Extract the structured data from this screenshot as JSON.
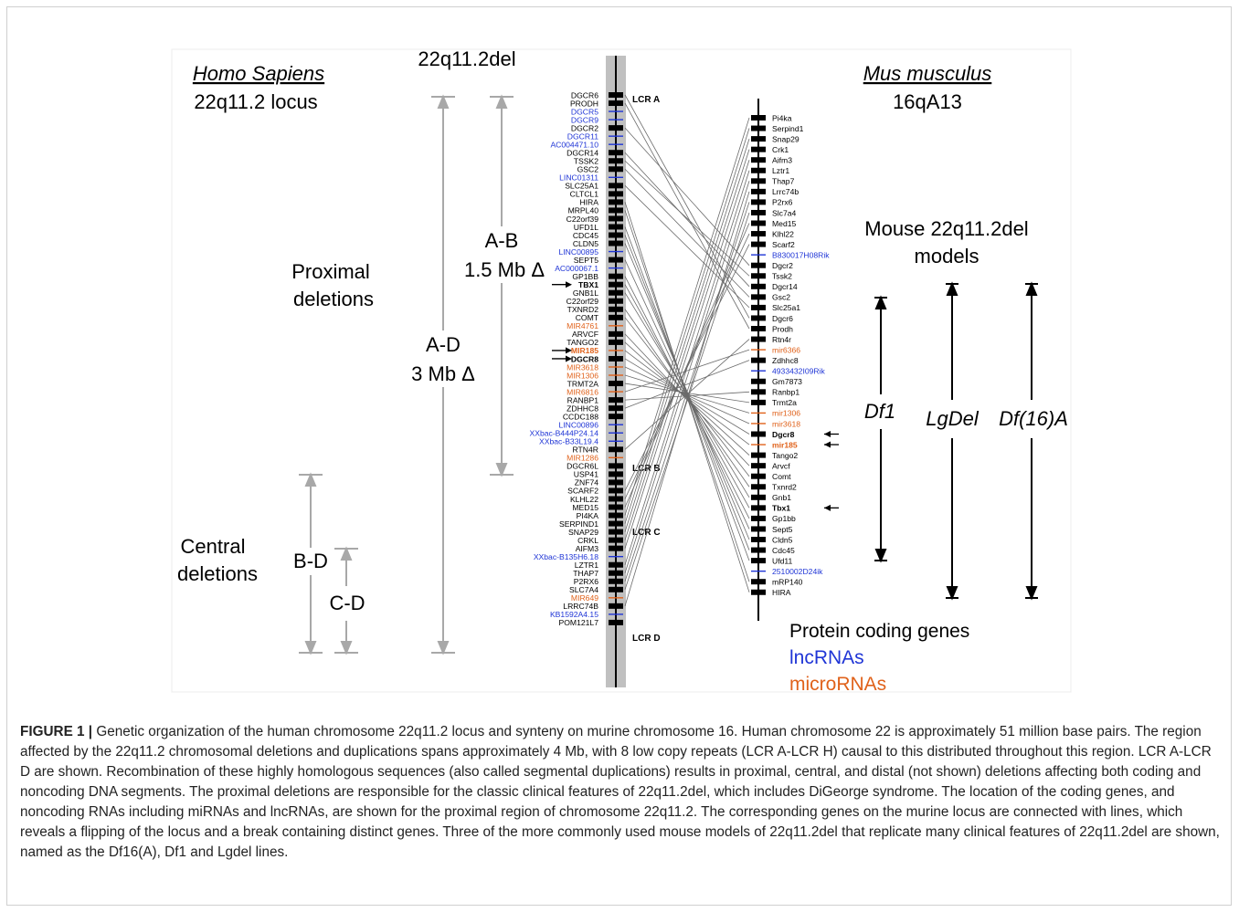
{
  "figure": {
    "titles": {
      "human_species": "Homo Sapiens",
      "human_locus": "22q11.2 locus",
      "deletion_label": "22q11.2del",
      "mouse_species": "Mus musculus",
      "mouse_locus": "16qA13",
      "mouse_models_line1": "Mouse 22q11.2del",
      "mouse_models_line2": "models"
    },
    "deletion_groups": {
      "proximal_line1": "Proximal",
      "proximal_line2": "deletions",
      "central_line1": "Central",
      "central_line2": "deletions"
    },
    "ranges": {
      "ad_label": "A-D",
      "ad_size": "3 Mb Δ",
      "ab_label": "A-B",
      "ab_size": "1.5 Mb Δ",
      "bd_label": "B-D",
      "cd_label": "C-D"
    },
    "models": [
      "Df1",
      "LgDel",
      "Df(16)A"
    ],
    "legend": {
      "protein": "Protein coding genes",
      "lnc": "lncRNAs",
      "micro": "microRNAs"
    },
    "lcr_labels": [
      "LCR A",
      "LCR B",
      "LCR C",
      "LCR D"
    ],
    "colors": {
      "protein": "#000000",
      "lnc": "#1f35d6",
      "micro": "#e0621b",
      "bracket": "#a8a8a8",
      "lcr_band": "#c0c0c0"
    },
    "human_genes": [
      {
        "name": "DGCR6",
        "type": "p"
      },
      {
        "name": "PRODH",
        "type": "p"
      },
      {
        "name": "DGCR5",
        "type": "l"
      },
      {
        "name": "DGCR9",
        "type": "l"
      },
      {
        "name": "DGCR2",
        "type": "p"
      },
      {
        "name": "DGCR11",
        "type": "l"
      },
      {
        "name": "AC004471.10",
        "type": "l"
      },
      {
        "name": "DGCR14",
        "type": "p"
      },
      {
        "name": "TSSK2",
        "type": "p"
      },
      {
        "name": "GSC2",
        "type": "p"
      },
      {
        "name": "LINC01311",
        "type": "l"
      },
      {
        "name": "SLC25A1",
        "type": "p"
      },
      {
        "name": "CLTCL1",
        "type": "p"
      },
      {
        "name": "HIRA",
        "type": "p"
      },
      {
        "name": "MRPL40",
        "type": "p"
      },
      {
        "name": "C22orf39",
        "type": "p"
      },
      {
        "name": "UFD1L",
        "type": "p"
      },
      {
        "name": "CDC45",
        "type": "p"
      },
      {
        "name": "CLDN5",
        "type": "p"
      },
      {
        "name": "LINC00895",
        "type": "l"
      },
      {
        "name": "SEPT5",
        "type": "p"
      },
      {
        "name": "AC000067.1",
        "type": "l"
      },
      {
        "name": "GP1BB",
        "type": "p"
      },
      {
        "name": "TBX1",
        "type": "p",
        "bold": true,
        "arrow": true
      },
      {
        "name": "GNB1L",
        "type": "p"
      },
      {
        "name": "C22orf29",
        "type": "p"
      },
      {
        "name": "TXNRD2",
        "type": "p"
      },
      {
        "name": "COMT",
        "type": "p"
      },
      {
        "name": "MIR4761",
        "type": "m"
      },
      {
        "name": "ARVCF",
        "type": "p"
      },
      {
        "name": "TANGO2",
        "type": "p"
      },
      {
        "name": "MIR185",
        "type": "m",
        "bold": true,
        "arrow": true
      },
      {
        "name": "DGCR8",
        "type": "p",
        "bold": true,
        "arrow": true
      },
      {
        "name": "MIR3618",
        "type": "m"
      },
      {
        "name": "MIR1306",
        "type": "m"
      },
      {
        "name": "TRMT2A",
        "type": "p"
      },
      {
        "name": "MIR6816",
        "type": "m"
      },
      {
        "name": "RANBP1",
        "type": "p"
      },
      {
        "name": "ZDHHC8",
        "type": "p"
      },
      {
        "name": "CCDC188",
        "type": "p"
      },
      {
        "name": "LINC00896",
        "type": "l"
      },
      {
        "name": "XXbac-B444P24.14",
        "type": "l"
      },
      {
        "name": "XXbac-B33L19.4",
        "type": "l"
      },
      {
        "name": "RTN4R",
        "type": "p"
      },
      {
        "name": "MIR1286",
        "type": "m"
      },
      {
        "name": "DGCR6L",
        "type": "p"
      },
      {
        "name": "USP41",
        "type": "p"
      },
      {
        "name": "ZNF74",
        "type": "p"
      },
      {
        "name": "SCARF2",
        "type": "p"
      },
      {
        "name": "KLHL22",
        "type": "p"
      },
      {
        "name": "MED15",
        "type": "p"
      },
      {
        "name": "PI4KA",
        "type": "p"
      },
      {
        "name": "SERPIND1",
        "type": "p"
      },
      {
        "name": "SNAP29",
        "type": "p"
      },
      {
        "name": "CRKL",
        "type": "p"
      },
      {
        "name": "AIFM3",
        "type": "p"
      },
      {
        "name": "XXbac-B135H6.18",
        "type": "l"
      },
      {
        "name": "LZTR1",
        "type": "p"
      },
      {
        "name": "THAP7",
        "type": "p"
      },
      {
        "name": "P2RX6",
        "type": "p"
      },
      {
        "name": "SLC7A4",
        "type": "p"
      },
      {
        "name": "MIR649",
        "type": "m"
      },
      {
        "name": "LRRC74B",
        "type": "p"
      },
      {
        "name": "KB1592A4.15",
        "type": "l"
      },
      {
        "name": "POM121L7",
        "type": "p"
      }
    ],
    "mouse_genes": [
      {
        "name": "Pi4ka",
        "type": "p"
      },
      {
        "name": "Serpind1",
        "type": "p"
      },
      {
        "name": "Snap29",
        "type": "p"
      },
      {
        "name": "Crk1",
        "type": "p"
      },
      {
        "name": "Aifm3",
        "type": "p"
      },
      {
        "name": "Lztr1",
        "type": "p"
      },
      {
        "name": "Thap7",
        "type": "p"
      },
      {
        "name": "Lrrc74b",
        "type": "p"
      },
      {
        "name": "P2rx6",
        "type": "p"
      },
      {
        "name": "Slc7a4",
        "type": "p"
      },
      {
        "name": "Med15",
        "type": "p"
      },
      {
        "name": "Klhl22",
        "type": "p"
      },
      {
        "name": "Scarf2",
        "type": "p"
      },
      {
        "name": "B830017H08Rik",
        "type": "l"
      },
      {
        "name": "Dgcr2",
        "type": "p"
      },
      {
        "name": "Tssk2",
        "type": "p"
      },
      {
        "name": "Dgcr14",
        "type": "p"
      },
      {
        "name": "Gsc2",
        "type": "p"
      },
      {
        "name": "Slc25a1",
        "type": "p"
      },
      {
        "name": "Dgcr6",
        "type": "p"
      },
      {
        "name": "Prodh",
        "type": "p"
      },
      {
        "name": "Rtn4r",
        "type": "p"
      },
      {
        "name": "mir6366",
        "type": "m"
      },
      {
        "name": "Zdhhc8",
        "type": "p"
      },
      {
        "name": "4933432I09Rik",
        "type": "l"
      },
      {
        "name": "Gm7873",
        "type": "p"
      },
      {
        "name": "Ranbp1",
        "type": "p"
      },
      {
        "name": "Trmt2a",
        "type": "p"
      },
      {
        "name": "mir1306",
        "type": "m"
      },
      {
        "name": "mir3618",
        "type": "m"
      },
      {
        "name": "Dgcr8",
        "type": "p",
        "bold": true,
        "arrow": true
      },
      {
        "name": "mir185",
        "type": "m",
        "bold": true,
        "arrow": true
      },
      {
        "name": "Tango2",
        "type": "p"
      },
      {
        "name": "Arvcf",
        "type": "p"
      },
      {
        "name": "Comt",
        "type": "p"
      },
      {
        "name": "Txnrd2",
        "type": "p"
      },
      {
        "name": "Gnb1",
        "type": "p"
      },
      {
        "name": "Tbx1",
        "type": "p",
        "bold": true,
        "arrow": true
      },
      {
        "name": "Gp1bb",
        "type": "p"
      },
      {
        "name": "Sept5",
        "type": "p"
      },
      {
        "name": "Cldn5",
        "type": "p"
      },
      {
        "name": "Cdc45",
        "type": "p"
      },
      {
        "name": "Ufd11",
        "type": "p"
      },
      {
        "name": "2510002D24ik",
        "type": "l"
      },
      {
        "name": "mRP140",
        "type": "p"
      },
      {
        "name": "HIRA",
        "type": "p"
      }
    ],
    "links": [
      [
        "DGCR6",
        "Dgcr6"
      ],
      [
        "PRODH",
        "Prodh"
      ],
      [
        "DGCR2",
        "Dgcr2"
      ],
      [
        "DGCR14",
        "Dgcr14"
      ],
      [
        "TSSK2",
        "Tssk2"
      ],
      [
        "GSC2",
        "Gsc2"
      ],
      [
        "SLC25A1",
        "Slc25a1"
      ],
      [
        "HIRA",
        "HIRA"
      ],
      [
        "MRPL40",
        "mRP140"
      ],
      [
        "UFD1L",
        "Ufd11"
      ],
      [
        "CDC45",
        "Cdc45"
      ],
      [
        "CLDN5",
        "Cldn5"
      ],
      [
        "SEPT5",
        "Sept5"
      ],
      [
        "GP1BB",
        "Gp1bb"
      ],
      [
        "TBX1",
        "Tbx1"
      ],
      [
        "GNB1L",
        "Gnb1"
      ],
      [
        "TXNRD2",
        "Txnrd2"
      ],
      [
        "COMT",
        "Comt"
      ],
      [
        "ARVCF",
        "Arvcf"
      ],
      [
        "TANGO2",
        "Tango2"
      ],
      [
        "MIR185",
        "mir185"
      ],
      [
        "DGCR8",
        "Dgcr8"
      ],
      [
        "MIR3618",
        "mir3618"
      ],
      [
        "MIR1306",
        "mir1306"
      ],
      [
        "TRMT2A",
        "Trmt2a"
      ],
      [
        "RANBP1",
        "Ranbp1"
      ],
      [
        "ZDHHC8",
        "Zdhhc8"
      ],
      [
        "RTN4R",
        "Rtn4r"
      ],
      [
        "MED15",
        "Med15"
      ],
      [
        "KLHL22",
        "Klhl22"
      ],
      [
        "SCARF2",
        "Scarf2"
      ],
      [
        "PI4KA",
        "Pi4ka"
      ],
      [
        "SERPIND1",
        "Serpind1"
      ],
      [
        "SNAP29",
        "Snap29"
      ],
      [
        "CRKL",
        "Crk1"
      ],
      [
        "AIFM3",
        "Aifm3"
      ],
      [
        "LZTR1",
        "Lztr1"
      ],
      [
        "THAP7",
        "Thap7"
      ],
      [
        "P2RX6",
        "P2rx6"
      ],
      [
        "SLC7A4",
        "Slc7a4"
      ],
      [
        "LRRC74B",
        "Lrrc74b"
      ],
      [
        "MIR6816",
        "mir6366"
      ]
    ]
  },
  "caption": {
    "label": "FIGURE 1 |",
    "text": " Genetic organization of the human chromosome 22q11.2 locus and synteny on murine chromosome 16. Human chromosome 22 is approximately 51 million base pairs. The region affected by the 22q11.2 chromosomal deletions and duplications spans approximately 4 Mb, with 8 low copy repeats (LCR A-LCR H) causal to this distributed throughout this region. LCR A-LCR D are shown. Recombination of these highly homologous sequences (also called segmental duplications) results in proximal, central, and distal (not shown) deletions affecting both coding and noncoding DNA segments. The proximal deletions are responsible for the classic clinical features of 22q11.2del, which includes DiGeorge syndrome. The location of the coding genes, and noncoding RNAs including miRNAs and lncRNAs, are shown for the proximal region of chromosome 22q11.2. The corresponding genes on the murine locus are connected with lines, which reveals a flipping of the locus and a break containing distinct genes. Three of the more commonly used mouse models of 22q11.2del that replicate many clinical features of 22q11.2del are shown, named as the Df16(A), Df1 and Lgdel lines."
  }
}
